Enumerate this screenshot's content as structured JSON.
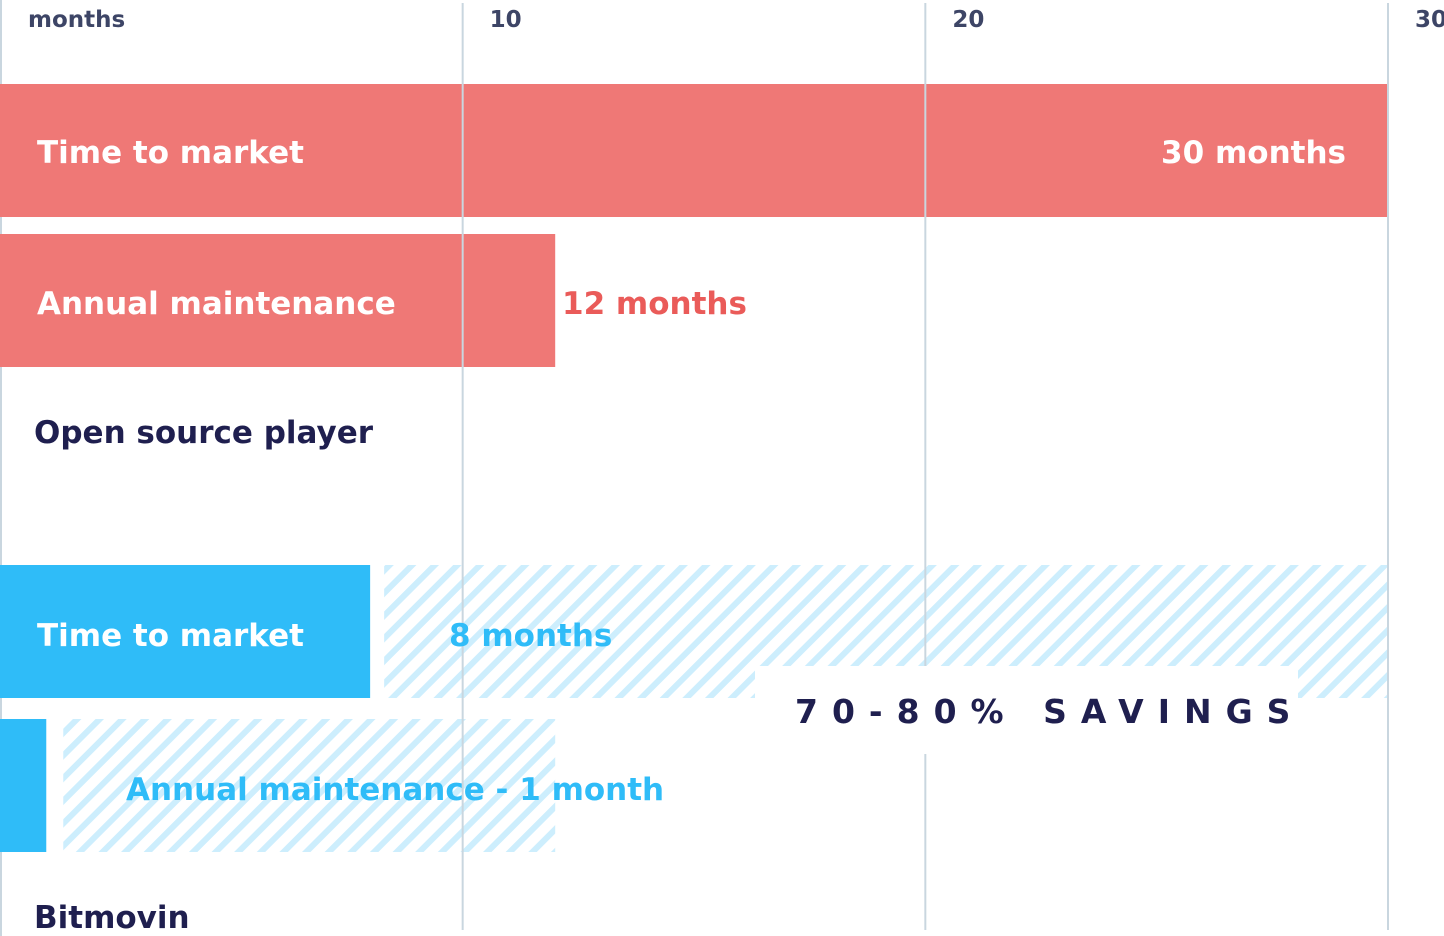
{
  "chart_data": {
    "type": "bar",
    "orientation": "horizontal",
    "xlabel": "months",
    "xlim": [
      0,
      30
    ],
    "xticks": [
      10,
      20,
      30
    ],
    "grid": true,
    "colors": {
      "open_source": "#ef7876",
      "open_source_text": "#ea5b59",
      "bitmovin": "#2fbcf8",
      "hatch": "#cdeefd",
      "grid": "#c9d6df",
      "dark_text": "#1f1f4f"
    },
    "groups": [
      {
        "name": "Open source player",
        "bars": [
          {
            "label": "Time to market",
            "value": 30,
            "value_label": "30 months"
          },
          {
            "label": "Annual maintenance",
            "value": 12,
            "value_label": "12 months"
          }
        ]
      },
      {
        "name": "Bitmovin",
        "bars": [
          {
            "label": "Time to market",
            "value": 8,
            "value_label": "8 months",
            "saved_up_to": 30
          },
          {
            "label": "",
            "value": 1,
            "value_label": "Annual maintenance - 1 month",
            "saved_up_to": 12
          }
        ]
      }
    ],
    "annotation": "70-80% SAVINGS"
  }
}
